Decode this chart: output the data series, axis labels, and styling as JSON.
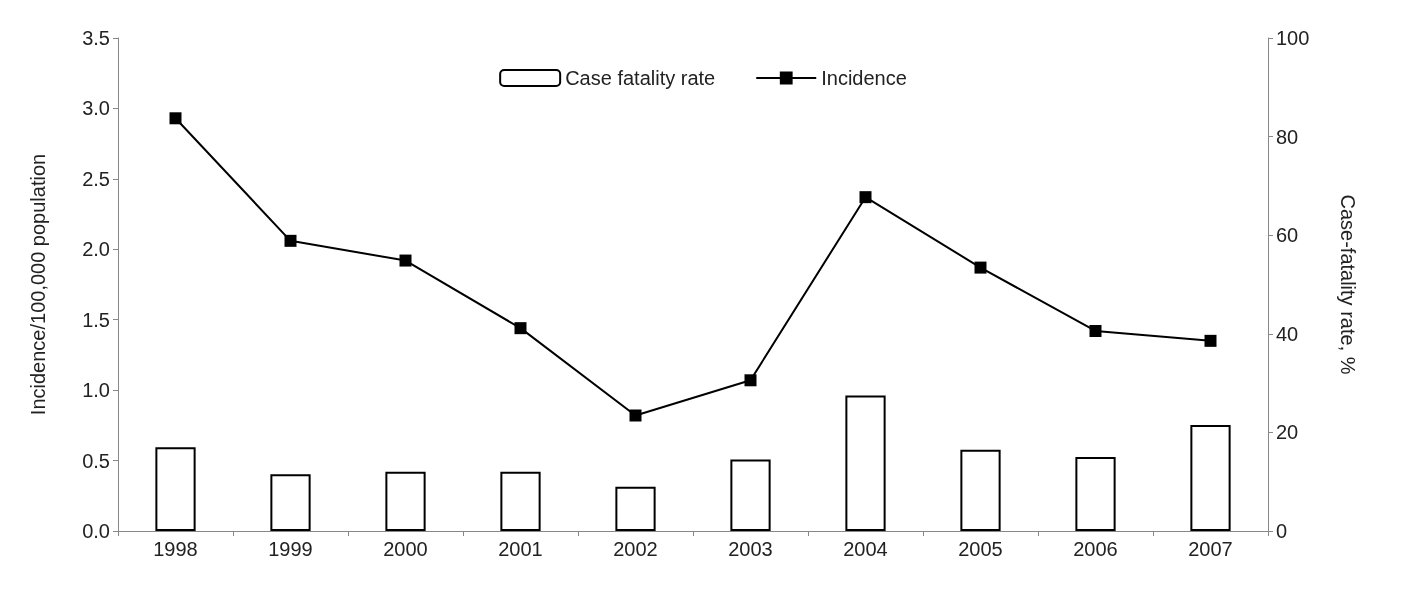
{
  "chart_data": {
    "type": "bar",
    "categories": [
      "1998",
      "1999",
      "2000",
      "2001",
      "2002",
      "2003",
      "2004",
      "2005",
      "2006",
      "2007"
    ],
    "series": [
      {
        "name": "Case fatality rate",
        "axis": "y2",
        "color": "#ffffff",
        "values": [
          17,
          11.5,
          12,
          12,
          9,
          14.5,
          27.5,
          16.5,
          15,
          21.5
        ]
      },
      {
        "name": "Incidence",
        "type": "line",
        "color": "#000000",
        "values": [
          2.93,
          2.06,
          1.92,
          1.44,
          0.82,
          1.07,
          2.37,
          1.87,
          1.42,
          1.35
        ]
      }
    ],
    "ylabel": "Incidence/100,000 population",
    "y2label": "Case-fatality rate, %",
    "ylim": [
      0,
      3.5
    ],
    "yticks": [
      {
        "value": 0,
        "label": "0.0"
      },
      {
        "value": 0.5,
        "label": "0.5"
      },
      {
        "value": 1,
        "label": "1.0"
      },
      {
        "value": 1.5,
        "label": "1.5"
      },
      {
        "value": 2,
        "label": "2.0"
      },
      {
        "value": 2.5,
        "label": "2.5"
      },
      {
        "value": 3,
        "label": "3.0"
      },
      {
        "value": 3.5,
        "label": "3.5"
      }
    ],
    "y2lim": [
      0,
      100
    ],
    "y2ticks": [
      0,
      20,
      40,
      60,
      80,
      100
    ],
    "legend": "top",
    "marker": "square",
    "grid": false
  }
}
